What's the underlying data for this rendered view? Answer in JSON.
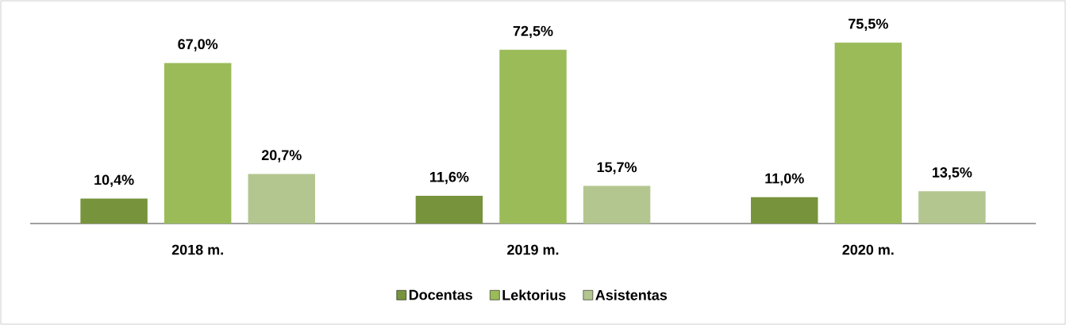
{
  "chart_data": {
    "type": "bar",
    "categories": [
      "2018 m.",
      "2019 m.",
      "2020 m."
    ],
    "series": [
      {
        "name": "Docentas",
        "color": "#77933c",
        "values": [
          10.4,
          11.6,
          11.0
        ],
        "value_labels": [
          "10,4%",
          "11,6%",
          "11,0%"
        ]
      },
      {
        "name": "Lektorius",
        "color": "#9bbb59",
        "values": [
          67.0,
          72.5,
          75.5
        ],
        "value_labels": [
          "67,0%",
          "72,5%",
          "75,5%"
        ]
      },
      {
        "name": "Asistentas",
        "color": "#b3c68f",
        "values": [
          20.7,
          15.7,
          13.5
        ],
        "value_labels": [
          "20,7%",
          "15,7%",
          "13,5%"
        ]
      }
    ],
    "legend": "bottom"
  }
}
